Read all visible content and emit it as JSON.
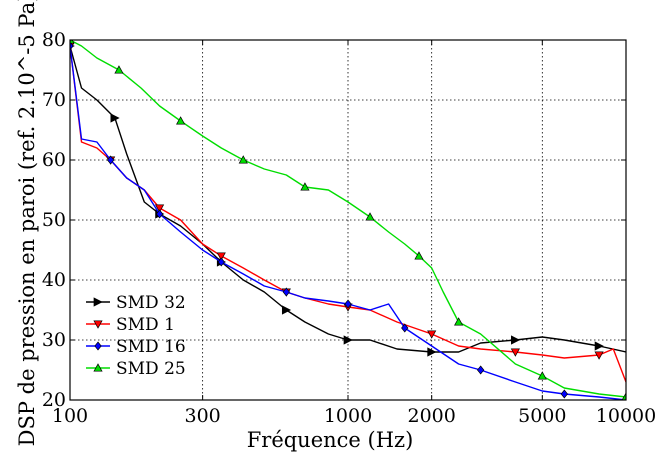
{
  "chart_data": {
    "type": "line",
    "xlabel": "Fréquence (Hz)",
    "ylabel": "DSP de pression en paroi (ref. 2.10^-5 Pa)",
    "x_scale": "log",
    "xlim": [
      100,
      10000
    ],
    "ylim": [
      20,
      80
    ],
    "xticks": [
      100,
      300,
      1000,
      2000,
      5000,
      10000
    ],
    "xtick_labels": [
      "100",
      "300",
      "1000",
      "2000",
      "5000",
      "10000"
    ],
    "yticks": [
      20,
      30,
      40,
      50,
      60,
      70,
      80
    ],
    "ytick_labels": [
      "20",
      "30",
      "40",
      "50",
      "60",
      "70",
      "80"
    ],
    "grid": true,
    "grid_style": "dotted",
    "legend_position": "lower-left",
    "series": [
      {
        "name": "SMD 32",
        "color": "#000000",
        "marker": "triangle-right",
        "values": [
          [
            100,
            79
          ],
          [
            110,
            72
          ],
          [
            125,
            70
          ],
          [
            145,
            67
          ],
          [
            160,
            61
          ],
          [
            185,
            53
          ],
          [
            210,
            51
          ],
          [
            250,
            49
          ],
          [
            300,
            46
          ],
          [
            350,
            43
          ],
          [
            420,
            40
          ],
          [
            500,
            38
          ],
          [
            600,
            35
          ],
          [
            700,
            33
          ],
          [
            850,
            31
          ],
          [
            1000,
            30
          ],
          [
            1200,
            30
          ],
          [
            1500,
            28.5
          ],
          [
            2000,
            28
          ],
          [
            2500,
            28
          ],
          [
            3000,
            29.5
          ],
          [
            4000,
            30
          ],
          [
            5000,
            30.5
          ],
          [
            6000,
            30
          ],
          [
            8000,
            29
          ],
          [
            10000,
            28
          ]
        ]
      },
      {
        "name": "SMD 1",
        "color": "#ff0000",
        "marker": "triangle-down",
        "values": [
          [
            100,
            79
          ],
          [
            110,
            63
          ],
          [
            125,
            62
          ],
          [
            140,
            60
          ],
          [
            160,
            57
          ],
          [
            185,
            55
          ],
          [
            210,
            52
          ],
          [
            250,
            50
          ],
          [
            300,
            46
          ],
          [
            350,
            44
          ],
          [
            420,
            42
          ],
          [
            500,
            40
          ],
          [
            600,
            38
          ],
          [
            700,
            37
          ],
          [
            850,
            36
          ],
          [
            1000,
            35.5
          ],
          [
            1200,
            35
          ],
          [
            1500,
            33
          ],
          [
            2000,
            31
          ],
          [
            2500,
            29
          ],
          [
            3000,
            28.5
          ],
          [
            4000,
            28
          ],
          [
            5000,
            27.5
          ],
          [
            6000,
            27
          ],
          [
            8000,
            27.5
          ],
          [
            9000,
            28.5
          ],
          [
            10000,
            23
          ]
        ]
      },
      {
        "name": "SMD 16",
        "color": "#0000ff",
        "marker": "diamond",
        "values": [
          [
            100,
            79
          ],
          [
            110,
            63.5
          ],
          [
            125,
            63
          ],
          [
            140,
            60
          ],
          [
            160,
            57
          ],
          [
            185,
            55
          ],
          [
            210,
            51
          ],
          [
            250,
            48
          ],
          [
            300,
            45
          ],
          [
            350,
            43
          ],
          [
            420,
            41
          ],
          [
            500,
            39
          ],
          [
            600,
            38
          ],
          [
            700,
            37
          ],
          [
            850,
            36.5
          ],
          [
            1000,
            36
          ],
          [
            1200,
            35
          ],
          [
            1400,
            36
          ],
          [
            1600,
            32
          ],
          [
            2000,
            29
          ],
          [
            2500,
            26
          ],
          [
            3000,
            25
          ],
          [
            4000,
            23
          ],
          [
            5000,
            21.5
          ],
          [
            6000,
            21
          ],
          [
            8000,
            20.5
          ],
          [
            10000,
            20
          ]
        ]
      },
      {
        "name": "SMD 25",
        "color": "#00dd00",
        "marker": "triangle-up",
        "values": [
          [
            100,
            80
          ],
          [
            110,
            79
          ],
          [
            125,
            77
          ],
          [
            150,
            75
          ],
          [
            180,
            72
          ],
          [
            210,
            69
          ],
          [
            250,
            66.5
          ],
          [
            300,
            64
          ],
          [
            350,
            62
          ],
          [
            420,
            60
          ],
          [
            500,
            58.5
          ],
          [
            600,
            57.5
          ],
          [
            700,
            55.5
          ],
          [
            850,
            55
          ],
          [
            1000,
            53
          ],
          [
            1200,
            50.5
          ],
          [
            1400,
            48
          ],
          [
            1600,
            46
          ],
          [
            1800,
            44
          ],
          [
            2000,
            42
          ],
          [
            2200,
            38
          ],
          [
            2500,
            33
          ],
          [
            3000,
            31
          ],
          [
            4000,
            26
          ],
          [
            5000,
            24
          ],
          [
            6000,
            22
          ],
          [
            8000,
            21
          ],
          [
            10000,
            20.5
          ]
        ]
      }
    ]
  }
}
